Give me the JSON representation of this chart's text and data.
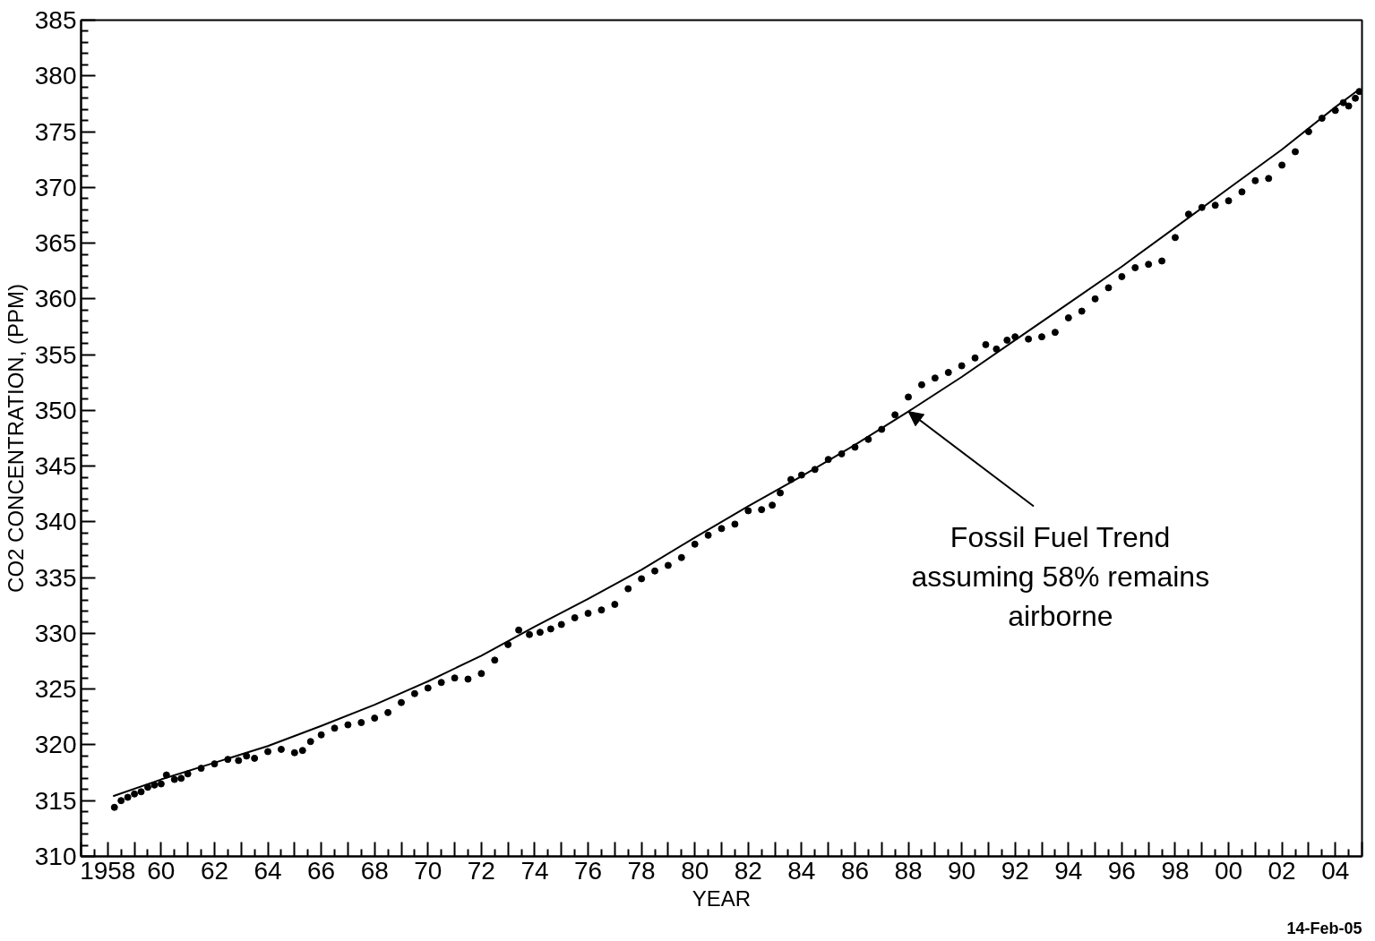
{
  "chart_data": {
    "type": "scatter",
    "xlabel": "YEAR",
    "ylabel": "CO2 CONCENTRATION, (PPM)",
    "xlim": [
      1957,
      2005
    ],
    "ylim": [
      310,
      385
    ],
    "xticks": [
      {
        "value": 1957,
        "label": null
      },
      {
        "value": 1958,
        "label": "1958"
      },
      {
        "value": 1959,
        "label": null
      },
      {
        "value": 1960,
        "label": "60"
      },
      {
        "value": 1961,
        "label": null
      },
      {
        "value": 1962,
        "label": "62"
      },
      {
        "value": 1963,
        "label": null
      },
      {
        "value": 1964,
        "label": "64"
      },
      {
        "value": 1965,
        "label": null
      },
      {
        "value": 1966,
        "label": "66"
      },
      {
        "value": 1967,
        "label": null
      },
      {
        "value": 1968,
        "label": "68"
      },
      {
        "value": 1969,
        "label": null
      },
      {
        "value": 1970,
        "label": "70"
      },
      {
        "value": 1971,
        "label": null
      },
      {
        "value": 1972,
        "label": "72"
      },
      {
        "value": 1973,
        "label": null
      },
      {
        "value": 1974,
        "label": "74"
      },
      {
        "value": 1975,
        "label": null
      },
      {
        "value": 1976,
        "label": "76"
      },
      {
        "value": 1977,
        "label": null
      },
      {
        "value": 1978,
        "label": "78"
      },
      {
        "value": 1979,
        "label": null
      },
      {
        "value": 1980,
        "label": "80"
      },
      {
        "value": 1981,
        "label": null
      },
      {
        "value": 1982,
        "label": "82"
      },
      {
        "value": 1983,
        "label": null
      },
      {
        "value": 1984,
        "label": "84"
      },
      {
        "value": 1985,
        "label": null
      },
      {
        "value": 1986,
        "label": "86"
      },
      {
        "value": 1987,
        "label": null
      },
      {
        "value": 1988,
        "label": "88"
      },
      {
        "value": 1989,
        "label": null
      },
      {
        "value": 1990,
        "label": "90"
      },
      {
        "value": 1991,
        "label": null
      },
      {
        "value": 1992,
        "label": "92"
      },
      {
        "value": 1993,
        "label": null
      },
      {
        "value": 1994,
        "label": "94"
      },
      {
        "value": 1995,
        "label": null
      },
      {
        "value": 1996,
        "label": "96"
      },
      {
        "value": 1997,
        "label": null
      },
      {
        "value": 1998,
        "label": "98"
      },
      {
        "value": 1999,
        "label": null
      },
      {
        "value": 2000,
        "label": "00"
      },
      {
        "value": 2001,
        "label": null
      },
      {
        "value": 2002,
        "label": "02"
      },
      {
        "value": 2003,
        "label": null
      },
      {
        "value": 2004,
        "label": "04"
      },
      {
        "value": 2005,
        "label": null
      }
    ],
    "yticks": [
      310,
      315,
      320,
      325,
      330,
      335,
      340,
      345,
      350,
      355,
      360,
      365,
      370,
      375,
      380,
      385
    ],
    "grid": false,
    "series": [
      {
        "marker": "circle",
        "color": "#000000",
        "x": [
          1958.25,
          1958.5,
          1958.75,
          1959.0,
          1959.25,
          1959.5,
          1959.75,
          1960.0,
          1960.2,
          1960.5,
          1960.75,
          1961.0,
          1961.5,
          1962.0,
          1962.5,
          1962.9,
          1963.2,
          1963.5,
          1964.0,
          1964.5,
          1965.0,
          1965.3,
          1965.6,
          1966.0,
          1966.5,
          1967.0,
          1967.5,
          1968.0,
          1968.5,
          1969.0,
          1969.5,
          1970.0,
          1970.5,
          1971.0,
          1971.5,
          1972.0,
          1972.5,
          1973.0,
          1973.4,
          1973.8,
          1974.2,
          1974.6,
          1975.0,
          1975.5,
          1976.0,
          1976.5,
          1977.0,
          1977.5,
          1978.0,
          1978.5,
          1979.0,
          1979.5,
          1980.0,
          1980.5,
          1981.0,
          1981.5,
          1982.0,
          1982.5,
          1982.9,
          1983.2,
          1983.6,
          1984.0,
          1984.5,
          1985.0,
          1985.5,
          1986.0,
          1986.5,
          1987.0,
          1987.5,
          1988.0,
          1988.5,
          1989.0,
          1989.5,
          1990.0,
          1990.5,
          1990.9,
          1991.3,
          1991.7,
          1992.0,
          1992.5,
          1993.0,
          1993.5,
          1994.0,
          1994.5,
          1995.0,
          1995.5,
          1996.0,
          1996.5,
          1997.0,
          1997.5,
          1998.0,
          1998.5,
          1999.0,
          1999.5,
          2000.0,
          2000.5,
          2001.0,
          2001.5,
          2002.0,
          2002.5,
          2003.0,
          2003.5,
          2004.0,
          2004.3,
          2004.5,
          2004.75,
          2004.9
        ],
        "values": [
          314.4,
          315.0,
          315.3,
          315.6,
          315.8,
          316.2,
          316.4,
          316.5,
          317.3,
          316.9,
          317.0,
          317.4,
          317.9,
          318.3,
          318.7,
          318.6,
          319.0,
          318.8,
          319.4,
          319.6,
          319.3,
          319.5,
          320.3,
          320.9,
          321.5,
          321.8,
          322.0,
          322.4,
          322.9,
          323.8,
          324.6,
          325.1,
          325.6,
          326.0,
          325.9,
          326.4,
          327.6,
          329.0,
          330.3,
          329.9,
          330.1,
          330.4,
          330.8,
          331.4,
          331.8,
          332.1,
          332.6,
          334.0,
          334.9,
          335.6,
          336.1,
          336.8,
          338.0,
          338.8,
          339.4,
          339.8,
          341.0,
          341.1,
          341.5,
          342.6,
          343.8,
          344.2,
          344.7,
          345.6,
          346.1,
          346.7,
          347.4,
          348.3,
          349.6,
          351.2,
          352.3,
          352.9,
          353.4,
          354.0,
          354.7,
          355.9,
          355.5,
          356.3,
          356.6,
          356.4,
          356.6,
          357.0,
          358.3,
          358.9,
          360.0,
          361.0,
          362.0,
          362.8,
          363.1,
          363.4,
          365.5,
          367.6,
          368.2,
          368.4,
          368.8,
          369.6,
          370.6,
          370.8,
          372.0,
          373.2,
          375.0,
          376.2,
          376.9,
          377.6,
          377.3,
          378.0,
          378.6
        ]
      },
      {
        "type": "line",
        "color": "#000000",
        "x": [
          1958.2,
          1960,
          1962,
          1964,
          1966,
          1968,
          1970,
          1972,
          1974,
          1976,
          1978,
          1980,
          1982,
          1984,
          1986,
          1988,
          1990,
          1992,
          1994,
          1996,
          1998,
          2000,
          2002,
          2004,
          2004.9
        ],
        "values": [
          315.4,
          316.9,
          318.4,
          319.9,
          321.7,
          323.6,
          325.7,
          328.0,
          330.6,
          333.1,
          335.7,
          338.6,
          341.4,
          344.1,
          346.9,
          349.9,
          353.0,
          356.3,
          359.6,
          362.9,
          366.4,
          369.9,
          373.4,
          377.2,
          378.8
        ]
      }
    ],
    "annotations": [
      {
        "text": "Fossil Fuel Trend\nassuming 58% remains\nairborne",
        "x": 1988.0,
        "y": 349.9
      },
      "14-Feb-05"
    ]
  }
}
